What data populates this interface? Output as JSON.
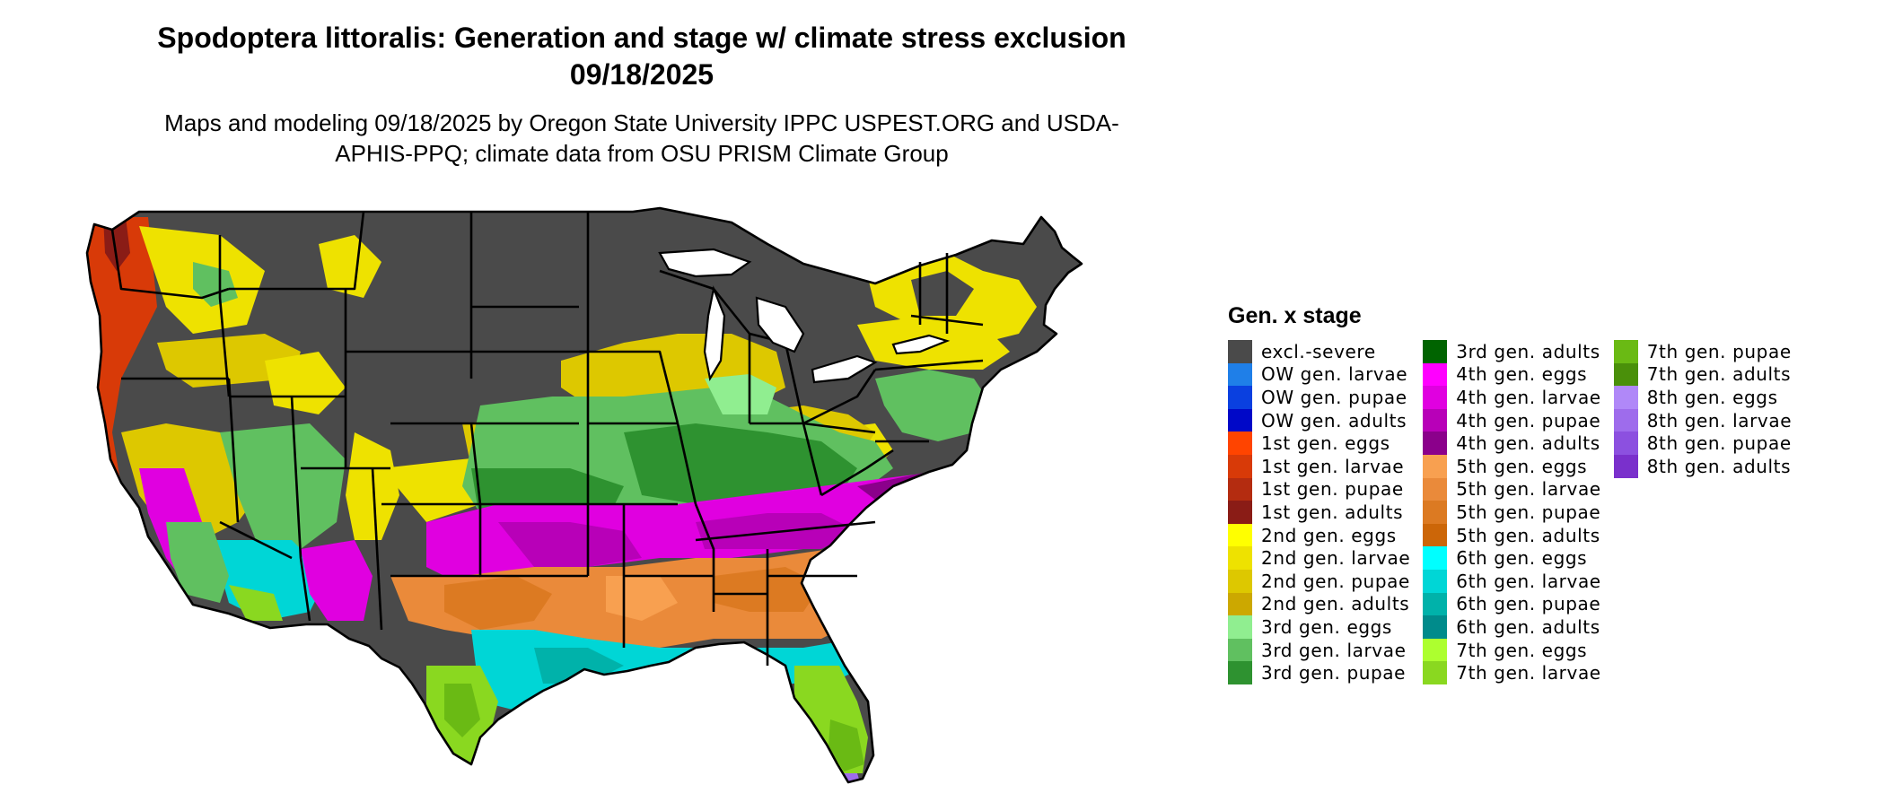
{
  "title": "Spodoptera littoralis: Generation and stage w/ climate stress exclusion 09/18/2025",
  "subtitle": "Maps and modeling 09/18/2025 by Oregon State University IPPC USPEST.ORG and USDA-APHIS-PPQ; climate data from OSU PRISM Climate Group",
  "legend": {
    "title": "Gen. x stage",
    "columns": [
      [
        {
          "label": "excl.-severe",
          "color": "#4a4a4a"
        },
        {
          "label": "OW gen. larvae",
          "color": "#1f7fe8"
        },
        {
          "label": "OW gen. pupae",
          "color": "#0a40e0"
        },
        {
          "label": "OW gen. adults",
          "color": "#0008c8"
        },
        {
          "label": "1st gen. eggs",
          "color": "#ff4400"
        },
        {
          "label": "1st gen. larvae",
          "color": "#d83a08"
        },
        {
          "label": "1st gen. pupae",
          "color": "#b42c10"
        },
        {
          "label": "1st gen. adults",
          "color": "#8a1c16"
        },
        {
          "label": "2nd gen. eggs",
          "color": "#ffff00"
        },
        {
          "label": "2nd gen. larvae",
          "color": "#eee200"
        },
        {
          "label": "2nd gen. pupae",
          "color": "#ddc800"
        },
        {
          "label": "2nd gen. adults",
          "color": "#cca800"
        },
        {
          "label": "3rd gen. eggs",
          "color": "#90ee90"
        },
        {
          "label": "3rd gen. larvae",
          "color": "#60c060"
        },
        {
          "label": "3rd gen. pupae",
          "color": "#2e9230"
        }
      ],
      [
        {
          "label": "3rd gen. adults",
          "color": "#006400"
        },
        {
          "label": "4th gen. eggs",
          "color": "#ff00ff"
        },
        {
          "label": "4th gen. larvae",
          "color": "#e000e0"
        },
        {
          "label": "4th gen. pupae",
          "color": "#b800b8"
        },
        {
          "label": "4th gen. adults",
          "color": "#8b008b"
        },
        {
          "label": "5th gen. eggs",
          "color": "#f8a050"
        },
        {
          "label": "5th gen. larvae",
          "color": "#ea8a3a"
        },
        {
          "label": "5th gen. pupae",
          "color": "#dc7a22"
        },
        {
          "label": "5th gen. adults",
          "color": "#cc6608"
        },
        {
          "label": "6th gen. eggs",
          "color": "#00ffff"
        },
        {
          "label": "6th gen. larvae",
          "color": "#00d6d6"
        },
        {
          "label": "6th gen. pupae",
          "color": "#00b2aa"
        },
        {
          "label": "6th gen. adults",
          "color": "#008b8b"
        },
        {
          "label": "7th gen. eggs",
          "color": "#adff2f"
        },
        {
          "label": "7th gen. larvae",
          "color": "#8ad820"
        }
      ],
      [
        {
          "label": "7th gen. pupae",
          "color": "#6aba14"
        },
        {
          "label": "7th gen. adults",
          "color": "#4a900a"
        },
        {
          "label": "8th gen. eggs",
          "color": "#b088f8"
        },
        {
          "label": "8th gen. larvae",
          "color": "#9e6cec"
        },
        {
          "label": "8th gen. pupae",
          "color": "#8c50e0"
        },
        {
          "label": "8th gen. adults",
          "color": "#7a30cc"
        }
      ]
    ]
  }
}
